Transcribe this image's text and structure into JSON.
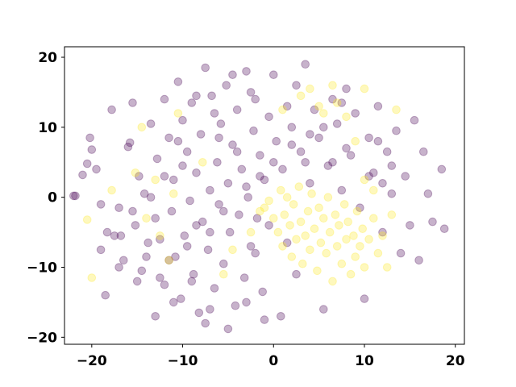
{
  "chart_data": {
    "type": "scatter",
    "title": "",
    "xlabel": "",
    "ylabel": "",
    "xlim": [
      -23,
      21
    ],
    "ylim": [
      -21,
      21.5
    ],
    "xticks": [
      -20,
      -10,
      0,
      10,
      20
    ],
    "yticks": [
      -20,
      -10,
      0,
      10,
      20
    ],
    "xtick_labels": [
      "−20",
      "−10",
      "0",
      "10",
      "20"
    ],
    "ytick_labels": [
      "−20",
      "−10",
      "0",
      "10",
      "20"
    ],
    "grid": false,
    "marker_alpha": 0.3,
    "series": [
      {
        "color": "#440154",
        "points": [
          [
            -21.8,
            0.2
          ],
          [
            -20.5,
            4.8
          ],
          [
            -20.2,
            8.5
          ],
          [
            -19.5,
            4.0
          ],
          [
            -19.0,
            -7.5
          ],
          [
            -18.3,
            -5.0
          ],
          [
            -17.8,
            12.5
          ],
          [
            -17.0,
            -1.5
          ],
          [
            -16.8,
            -5.5
          ],
          [
            -16.5,
            -9.0
          ],
          [
            -15.8,
            7.8
          ],
          [
            -15.5,
            13.5
          ],
          [
            -15.2,
            -4.0
          ],
          [
            -14.8,
            3.0
          ],
          [
            -14.5,
            -10.5
          ],
          [
            -14.2,
            0.5
          ],
          [
            -13.8,
            -6.5
          ],
          [
            -13.5,
            10.5
          ],
          [
            -13.0,
            -3.0
          ],
          [
            -12.8,
            5.5
          ],
          [
            -12.5,
            -11.5
          ],
          [
            -12.0,
            14.0
          ],
          [
            -11.5,
            8.5
          ],
          [
            -11.2,
            -2.0
          ],
          [
            -11.0,
            2.5
          ],
          [
            -10.8,
            -8.5
          ],
          [
            -10.5,
            16.5
          ],
          [
            -10.2,
            -14.5
          ],
          [
            -10.0,
            11.0
          ],
          [
            -9.8,
            -5.5
          ],
          [
            -9.5,
            6.5
          ],
          [
            -9.2,
            -0.5
          ],
          [
            -9.0,
            13.5
          ],
          [
            -8.8,
            -11.0
          ],
          [
            -8.5,
            3.5
          ],
          [
            -8.2,
            -16.5
          ],
          [
            -8.0,
            9.0
          ],
          [
            -7.8,
            -3.5
          ],
          [
            -7.5,
            18.5
          ],
          [
            -7.2,
            -7.5
          ],
          [
            -7.0,
            1.0
          ],
          [
            -6.8,
            14.5
          ],
          [
            -6.5,
            -13.0
          ],
          [
            -6.2,
            5.0
          ],
          [
            -6.0,
            -1.0
          ],
          [
            -5.8,
            10.5
          ],
          [
            -5.5,
            -9.5
          ],
          [
            -5.2,
            16.0
          ],
          [
            -5.0,
            2.0
          ],
          [
            -4.8,
            -5.0
          ],
          [
            -4.5,
            7.5
          ],
          [
            -4.2,
            -15.5
          ],
          [
            -4.0,
            12.5
          ],
          [
            -3.8,
            -2.5
          ],
          [
            -3.5,
            4.0
          ],
          [
            -3.2,
            -11.5
          ],
          [
            -3.0,
            18.0
          ],
          [
            -2.8,
            0.0
          ],
          [
            -2.5,
            -7.0
          ],
          [
            -2.2,
            9.5
          ],
          [
            -2.0,
            14.0
          ],
          [
            -1.8,
            -3.0
          ],
          [
            -1.5,
            6.0
          ],
          [
            -1.2,
            -13.5
          ],
          [
            -1.0,
            2.5
          ],
          [
            -0.5,
            11.5
          ],
          [
            0.0,
            17.5
          ],
          [
            0.3,
            8.0
          ],
          [
            0.8,
            -17.0
          ],
          [
            1.0,
            4.0
          ],
          [
            1.5,
            13.0
          ],
          [
            2.0,
            10.0
          ],
          [
            2.5,
            16.0
          ],
          [
            3.0,
            6.5
          ],
          [
            3.5,
            19.0
          ],
          [
            4.0,
            2.0
          ],
          [
            4.5,
            12.5
          ],
          [
            5.0,
            8.5
          ],
          [
            5.5,
            -16.0
          ],
          [
            6.0,
            4.5
          ],
          [
            6.5,
            14.0
          ],
          [
            7.0,
            10.5
          ],
          [
            7.5,
            1.0
          ],
          [
            8.0,
            15.5
          ],
          [
            8.5,
            6.0
          ],
          [
            9.0,
            12.0
          ],
          [
            9.5,
            -1.5
          ],
          [
            10.0,
            -14.5
          ],
          [
            10.5,
            8.5
          ],
          [
            11.0,
            3.5
          ],
          [
            11.5,
            13.0
          ],
          [
            12.0,
            -5.0
          ],
          [
            12.5,
            6.5
          ],
          [
            13.0,
            0.5
          ],
          [
            13.5,
            9.5
          ],
          [
            14.0,
            -8.0
          ],
          [
            14.5,
            3.0
          ],
          [
            15.0,
            -4.0
          ],
          [
            15.5,
            11.0
          ],
          [
            16.0,
            -9.0
          ],
          [
            16.5,
            6.5
          ],
          [
            17.0,
            0.5
          ],
          [
            17.5,
            -3.5
          ],
          [
            18.5,
            4.0
          ],
          [
            18.8,
            -4.5
          ],
          [
            -22.0,
            0.2
          ],
          [
            -21.0,
            3.2
          ],
          [
            -20.0,
            6.8
          ],
          [
            -18.5,
            -14.0
          ],
          [
            -17.0,
            -10.0
          ],
          [
            -16.0,
            7.2
          ],
          [
            -15.0,
            -12.0
          ],
          [
            -13.0,
            -17.0
          ],
          [
            -12.0,
            -12.5
          ],
          [
            -11.0,
            -15.0
          ],
          [
            -9.0,
            -12.0
          ],
          [
            -7.5,
            -18.0
          ],
          [
            -7.0,
            -16.0
          ],
          [
            -5.0,
            -18.8
          ],
          [
            -3.0,
            -15.0
          ],
          [
            -1.0,
            -17.5
          ],
          [
            -4.0,
            6.5
          ],
          [
            -6.0,
            8.5
          ],
          [
            -8.5,
            -4.0
          ],
          [
            -10.0,
            4.5
          ],
          [
            -12.5,
            -6.0
          ],
          [
            -14.0,
            -8.5
          ],
          [
            -2.0,
            -8.0
          ],
          [
            1.5,
            -6.5
          ],
          [
            2.5,
            -11.0
          ],
          [
            -0.5,
            -4.0
          ],
          [
            3.5,
            5.0
          ],
          [
            6.5,
            5.0
          ],
          [
            8.0,
            7.0
          ],
          [
            10.5,
            3.0
          ],
          [
            12.0,
            2.0
          ],
          [
            13.0,
            4.5
          ],
          [
            11.5,
            8.0
          ],
          [
            7.5,
            13.5
          ],
          [
            5.5,
            10.0
          ],
          [
            4.0,
            9.0
          ],
          [
            2.0,
            7.5
          ],
          [
            0.0,
            5.0
          ],
          [
            -1.5,
            3.0
          ],
          [
            -3.0,
            1.5
          ],
          [
            -5.5,
            -2.0
          ],
          [
            -7.0,
            -5.0
          ],
          [
            -9.5,
            -7.0
          ],
          [
            -11.5,
            -9.0
          ],
          [
            -2.5,
            15.0
          ],
          [
            -4.5,
            17.5
          ],
          [
            -6.5,
            12.0
          ],
          [
            -8.5,
            14.5
          ],
          [
            -10.5,
            8.0
          ],
          [
            -12.0,
            3.0
          ],
          [
            -13.5,
            0.0
          ],
          [
            -15.5,
            -2.0
          ],
          [
            -17.5,
            -5.5
          ],
          [
            -19.0,
            -1.0
          ]
        ]
      },
      {
        "color": "#fde725",
        "points": [
          [
            -20.5,
            -3.2
          ],
          [
            -20.0,
            -11.5
          ],
          [
            -17.8,
            1.0
          ],
          [
            -15.2,
            3.5
          ],
          [
            -14.5,
            10.0
          ],
          [
            -14.0,
            -3.0
          ],
          [
            -13.0,
            2.5
          ],
          [
            -12.5,
            -5.5
          ],
          [
            -11.5,
            -9.0
          ],
          [
            -11.0,
            0.5
          ],
          [
            -10.5,
            12.0
          ],
          [
            -7.8,
            5.0
          ],
          [
            -5.5,
            -11.0
          ],
          [
            -4.5,
            -7.5
          ],
          [
            -2.5,
            -5.0
          ],
          [
            -1.5,
            -2.0
          ],
          [
            -1.0,
            -1.5
          ],
          [
            -0.5,
            -0.5
          ],
          [
            0.0,
            -3.0
          ],
          [
            0.5,
            -5.0
          ],
          [
            0.8,
            1.0
          ],
          [
            1.0,
            -7.0
          ],
          [
            1.2,
            -2.5
          ],
          [
            1.5,
            0.0
          ],
          [
            1.8,
            -4.0
          ],
          [
            2.0,
            -8.5
          ],
          [
            2.2,
            -1.0
          ],
          [
            2.5,
            -6.0
          ],
          [
            2.8,
            1.5
          ],
          [
            3.0,
            -3.5
          ],
          [
            3.2,
            -9.5
          ],
          [
            3.5,
            -5.5
          ],
          [
            3.8,
            -2.0
          ],
          [
            4.0,
            -7.5
          ],
          [
            4.2,
            0.5
          ],
          [
            4.5,
            -4.5
          ],
          [
            4.8,
            -10.5
          ],
          [
            5.0,
            -1.5
          ],
          [
            5.2,
            -6.5
          ],
          [
            5.5,
            -3.0
          ],
          [
            5.8,
            -8.0
          ],
          [
            6.0,
            0.0
          ],
          [
            6.2,
            -5.0
          ],
          [
            6.5,
            -12.0
          ],
          [
            6.8,
            -2.5
          ],
          [
            7.0,
            -7.0
          ],
          [
            7.2,
            -4.0
          ],
          [
            7.5,
            -9.5
          ],
          [
            7.8,
            -1.0
          ],
          [
            8.0,
            -6.0
          ],
          [
            8.2,
            -3.5
          ],
          [
            8.5,
            -11.0
          ],
          [
            8.8,
            -5.5
          ],
          [
            9.0,
            -8.5
          ],
          [
            9.2,
            -2.0
          ],
          [
            9.5,
            -7.0
          ],
          [
            9.8,
            -4.5
          ],
          [
            10.0,
            -10.0
          ],
          [
            10.5,
            -6.0
          ],
          [
            11.0,
            -3.0
          ],
          [
            11.5,
            -8.0
          ],
          [
            12.0,
            -5.5
          ],
          [
            12.5,
            -10.0
          ],
          [
            13.0,
            -2.5
          ],
          [
            4.0,
            15.5
          ],
          [
            5.0,
            13.0
          ],
          [
            5.5,
            12.0
          ],
          [
            6.5,
            16.0
          ],
          [
            7.0,
            13.5
          ],
          [
            8.0,
            11.5
          ],
          [
            9.0,
            8.0
          ],
          [
            10.0,
            15.5
          ],
          [
            13.5,
            12.5
          ],
          [
            11.0,
            1.0
          ],
          [
            10.0,
            2.5
          ],
          [
            3.0,
            14.5
          ],
          [
            1.0,
            12.5
          ]
        ]
      }
    ]
  }
}
